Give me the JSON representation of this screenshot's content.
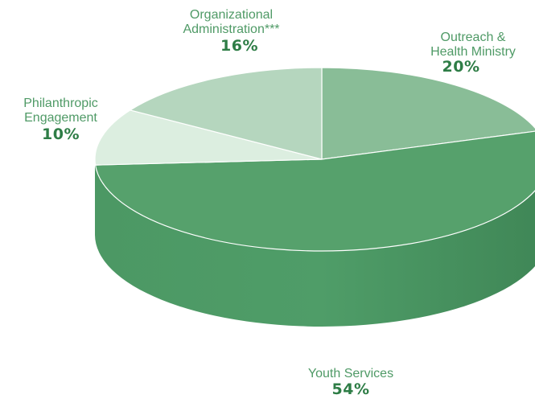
{
  "chart_data": {
    "type": "pie",
    "style": "3d",
    "slices": [
      {
        "label": "Outreach & Health Ministry",
        "display_label": "Outreach &\nHealth Ministry",
        "value": 20,
        "value_label": "20%",
        "color": "#89bd97"
      },
      {
        "label": "Youth Services",
        "display_label": "Youth Services",
        "value": 54,
        "value_label": "54%",
        "color": "#56a16c"
      },
      {
        "label": "Philanthropic Engagement",
        "display_label": "Philanthropic\nEngagement",
        "value": 10,
        "value_label": "10%",
        "color": "#dceee0"
      },
      {
        "label": "Organizational Administration***",
        "display_label": "Organizational\nAdministration***",
        "value": 16,
        "value_label": "16%",
        "color": "#b5d6be"
      }
    ],
    "side_color": "#4a9462"
  }
}
